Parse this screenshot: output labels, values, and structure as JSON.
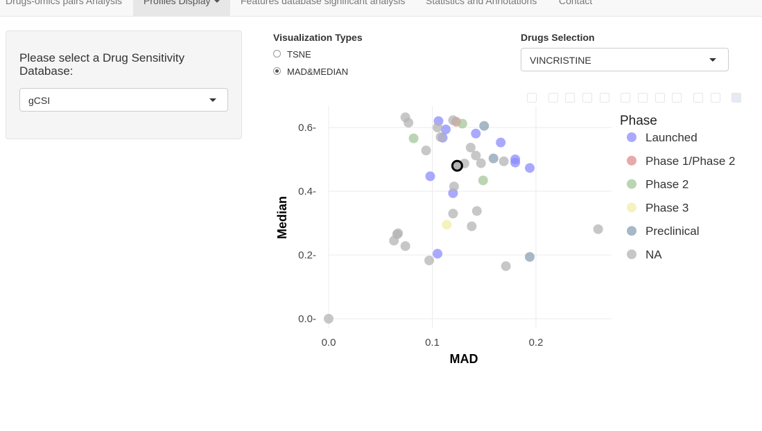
{
  "nav": {
    "tabs": [
      {
        "label": "Drugs-omics pairs Analysis"
      },
      {
        "label": "Profiles Display"
      },
      {
        "label": "Features database significant analysis"
      },
      {
        "label": "Statistics and Annotations"
      },
      {
        "label": "Contact"
      }
    ]
  },
  "sidebar": {
    "database_label": "Please select a Drug Sensitivity Database:",
    "database_value": "gCSI"
  },
  "controls": {
    "viz_label": "Visualization Types",
    "viz_options": [
      {
        "label": "TSNE",
        "selected": false
      },
      {
        "label": "MAD&MEDIAN",
        "selected": true
      }
    ],
    "drug_label": "Drugs Selection",
    "drug_value": "VINCRISTINE"
  },
  "modebar": {
    "icons": [
      "camera-icon",
      "zoom-icon",
      "pan-icon",
      "box-select-icon",
      "lasso-icon",
      "zoom-in-icon",
      "zoom-out-icon",
      "autoscale-icon",
      "reset-axes-icon",
      "spike-lines-icon",
      "hover-closest-icon",
      "hover-compare-icon",
      "plotly-logo-icon"
    ]
  },
  "chart_data": {
    "type": "scatter",
    "xlabel": "MAD",
    "ylabel": "Median",
    "xlim": [
      -0.01,
      0.27
    ],
    "ylim": [
      -0.01,
      0.67
    ],
    "x_ticks": [
      0,
      0.1,
      0.2
    ],
    "x_tick_labels": [
      "0.0",
      "0.1",
      "0.2"
    ],
    "y_ticks": [
      0,
      0.2,
      0.4,
      0.6
    ],
    "y_tick_labels": [
      "0.0",
      "0.2",
      "0.4",
      "0.6"
    ],
    "grid": true,
    "legend_title": "Phase",
    "legend_position": "right",
    "series": [
      {
        "name": "Launched",
        "color": "#8c8cff",
        "points": [
          [
            0.106,
            0.62
          ],
          [
            0.113,
            0.594
          ],
          [
            0.11,
            0.568
          ],
          [
            0.142,
            0.581
          ],
          [
            0.166,
            0.553
          ],
          [
            0.18,
            0.5
          ],
          [
            0.18,
            0.49
          ],
          [
            0.194,
            0.473
          ],
          [
            0.098,
            0.447
          ],
          [
            0.12,
            0.394
          ],
          [
            0.105,
            0.204
          ]
        ]
      },
      {
        "name": "Phase 1/Phase 2",
        "color": "#e08c8c",
        "points": [
          [
            0.123,
            0.618
          ]
        ]
      },
      {
        "name": "Phase 2",
        "color": "#a4c79a",
        "points": [
          [
            0.129,
            0.612
          ],
          [
            0.082,
            0.566
          ],
          [
            0.149,
            0.434
          ]
        ]
      },
      {
        "name": "Phase 3",
        "color": "#f2eeaa",
        "points": [
          [
            0.114,
            0.295
          ]
        ]
      },
      {
        "name": "Preclinical",
        "color": "#8aa0b4",
        "points": [
          [
            0.15,
            0.605
          ],
          [
            0.159,
            0.503
          ],
          [
            0.194,
            0.194
          ]
        ]
      },
      {
        "name": "NA",
        "color": "#b4b4b4",
        "points": [
          [
            0.074,
            0.632
          ],
          [
            0.077,
            0.615
          ],
          [
            0.12,
            0.623
          ],
          [
            0.105,
            0.6
          ],
          [
            0.108,
            0.57
          ],
          [
            0.094,
            0.528
          ],
          [
            0.137,
            0.537
          ],
          [
            0.142,
            0.512
          ],
          [
            0.131,
            0.487
          ],
          [
            0.147,
            0.488
          ],
          [
            0.169,
            0.494
          ],
          [
            0.121,
            0.415
          ],
          [
            0.12,
            0.33
          ],
          [
            0.143,
            0.338
          ],
          [
            0.138,
            0.29
          ],
          [
            0.067,
            0.268
          ],
          [
            0.066,
            0.265
          ],
          [
            0.063,
            0.245
          ],
          [
            0.074,
            0.228
          ],
          [
            0.097,
            0.183
          ],
          [
            0.171,
            0.165
          ],
          [
            0.26,
            0.281
          ],
          [
            0.0,
            0.0
          ]
        ]
      }
    ],
    "highlight": {
      "name": "VINCRISTINE",
      "x": 0.124,
      "y": 0.48
    }
  }
}
